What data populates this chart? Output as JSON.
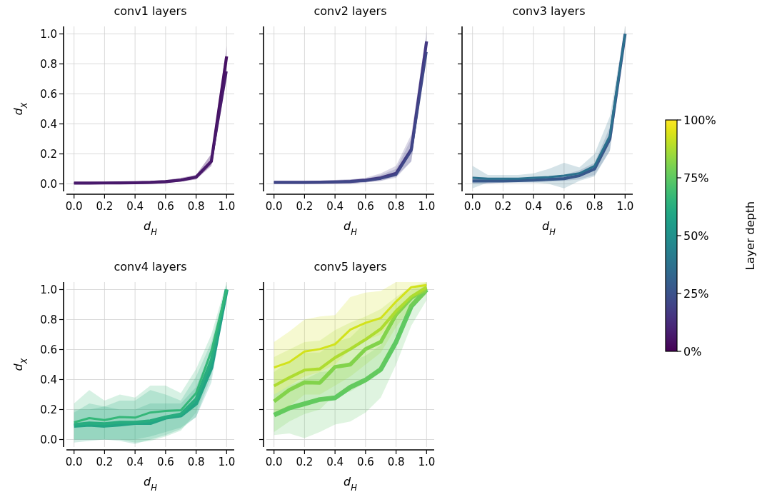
{
  "chart_data": [
    {
      "type": "line",
      "title": "conv1 layers",
      "xlabel": "d$_{H}$",
      "ylabel": "d$_{X}$",
      "xlim": [
        -0.05,
        1.05
      ],
      "ylim": [
        -0.05,
        1.05
      ],
      "x": [
        0,
        0.1,
        0.2,
        0.3,
        0.4,
        0.5,
        0.6,
        0.7,
        0.8,
        0.9,
        1.0
      ],
      "xticks": [
        {
          "value": 0,
          "label": "0.0"
        },
        {
          "value": 0.2,
          "label": "0.2"
        },
        {
          "value": 0.4,
          "label": "0.4"
        },
        {
          "value": 0.6,
          "label": "0.6"
        },
        {
          "value": 0.8,
          "label": "0.8"
        },
        {
          "value": 1,
          "label": "1.0"
        }
      ],
      "yticks": [
        {
          "value": 0,
          "label": "0.0"
        },
        {
          "value": 0.2,
          "label": "0.2"
        },
        {
          "value": 0.4,
          "label": "0.4"
        },
        {
          "value": 0.6,
          "label": "0.6"
        },
        {
          "value": 0.8,
          "label": "0.8"
        },
        {
          "value": 1,
          "label": "1.0"
        }
      ],
      "grid": true,
      "clabel": "Layer depth",
      "clim": [
        0,
        100
      ],
      "cticks": [
        {
          "value": 0,
          "label": "0%"
        },
        {
          "value": 25,
          "label": "25%"
        },
        {
          "value": 50,
          "label": "50%"
        },
        {
          "value": 75,
          "label": "75%"
        },
        {
          "value": 100,
          "label": "100%"
        }
      ],
      "series": [
        {
          "color": "#471164",
          "values": [
            0.005,
            0.005,
            0.006,
            0.007,
            0.008,
            0.01,
            0.015,
            0.025,
            0.045,
            0.15,
            0.85
          ],
          "lower": [
            0,
            0,
            0,
            0,
            0,
            0,
            0.005,
            0.015,
            0.03,
            0.12,
            0.8
          ],
          "upper": [
            0.01,
            0.01,
            0.012,
            0.014,
            0.016,
            0.02,
            0.025,
            0.04,
            0.06,
            0.2,
            0.92
          ]
        },
        {
          "color": "#481a6c",
          "values": [
            0.005,
            0.005,
            0.006,
            0.007,
            0.008,
            0.01,
            0.015,
            0.025,
            0.045,
            0.15,
            0.75
          ],
          "lower": [
            0,
            0,
            0,
            0,
            0,
            0,
            0.005,
            0.015,
            0.03,
            0.12,
            0.7
          ],
          "upper": [
            0.01,
            0.01,
            0.012,
            0.014,
            0.016,
            0.02,
            0.025,
            0.04,
            0.06,
            0.2,
            0.8
          ]
        }
      ]
    },
    {
      "type": "line",
      "title": "conv2 layers",
      "xlabel": "d$_{H}$",
      "xlim": [
        -0.05,
        1.05
      ],
      "ylim": [
        -0.05,
        1.05
      ],
      "x": [
        0,
        0.1,
        0.2,
        0.3,
        0.4,
        0.5,
        0.6,
        0.7,
        0.8,
        0.9,
        1.0
      ],
      "tick_labels": "x",
      "xticks": [
        {
          "value": 0,
          "label": "0.0"
        },
        {
          "value": 0.2,
          "label": "0.2"
        },
        {
          "value": 0.4,
          "label": "0.4"
        },
        {
          "value": 0.6,
          "label": "0.6"
        },
        {
          "value": 0.8,
          "label": "0.8"
        },
        {
          "value": 1,
          "label": "1.0"
        }
      ],
      "yticks": [
        {
          "value": 0,
          "label": null
        },
        {
          "value": 0.2,
          "label": null
        },
        {
          "value": 0.4,
          "label": null
        },
        {
          "value": 0.6,
          "label": null
        },
        {
          "value": 0.8,
          "label": null
        },
        {
          "value": 1,
          "label": null
        }
      ],
      "grid": true,
      "series": [
        {
          "color": "#443983",
          "values": [
            0.01,
            0.01,
            0.01,
            0.011,
            0.013,
            0.016,
            0.025,
            0.04,
            0.07,
            0.23,
            0.95
          ],
          "lower": [
            0,
            0,
            0,
            0,
            0,
            0,
            0.01,
            0.02,
            0.05,
            0.15,
            0.9
          ],
          "upper": [
            0.02,
            0.02,
            0.02,
            0.022,
            0.026,
            0.03,
            0.04,
            0.07,
            0.12,
            0.33,
            1.02
          ]
        },
        {
          "color": "#3f4788",
          "values": [
            0.01,
            0.01,
            0.01,
            0.011,
            0.013,
            0.016,
            0.02,
            0.035,
            0.06,
            0.22,
            0.88
          ],
          "lower": [
            0,
            0,
            0,
            0,
            0,
            0,
            0.01,
            0.02,
            0.04,
            0.15,
            0.84
          ],
          "upper": [
            0.02,
            0.02,
            0.02,
            0.022,
            0.026,
            0.03,
            0.035,
            0.06,
            0.1,
            0.3,
            0.93
          ]
        }
      ]
    },
    {
      "type": "line",
      "title": "conv3 layers",
      "xlabel": "d$_{H}$",
      "xlim": [
        -0.05,
        1.05
      ],
      "ylim": [
        -0.05,
        1.05
      ],
      "x": [
        0,
        0.1,
        0.2,
        0.3,
        0.4,
        0.5,
        0.6,
        0.7,
        0.8,
        0.9,
        1.0
      ],
      "tick_labels": "x",
      "xticks": [
        {
          "value": 0,
          "label": "0.0"
        },
        {
          "value": 0.2,
          "label": "0.2"
        },
        {
          "value": 0.4,
          "label": "0.4"
        },
        {
          "value": 0.6,
          "label": "0.6"
        },
        {
          "value": 0.8,
          "label": "0.8"
        },
        {
          "value": 1,
          "label": "1.0"
        }
      ],
      "yticks": [
        {
          "value": 0,
          "label": null
        },
        {
          "value": 0.2,
          "label": null
        },
        {
          "value": 0.4,
          "label": null
        },
        {
          "value": 0.6,
          "label": null
        },
        {
          "value": 0.8,
          "label": null
        },
        {
          "value": 1,
          "label": null
        }
      ],
      "grid": true,
      "series": [
        {
          "color": "#3b528b",
          "values": [
            0.02,
            0.02,
            0.02,
            0.022,
            0.025,
            0.03,
            0.035,
            0.055,
            0.1,
            0.3,
            1.0
          ],
          "lower": [
            0,
            0,
            0.01,
            0.01,
            0.01,
            0.015,
            0.02,
            0.03,
            0.06,
            0.22,
            0.97
          ],
          "upper": [
            0.05,
            0.04,
            0.04,
            0.04,
            0.04,
            0.05,
            0.06,
            0.09,
            0.14,
            0.38,
            1.03
          ]
        },
        {
          "color": "#2c728e",
          "values": [
            0.04,
            0.035,
            0.035,
            0.035,
            0.04,
            0.045,
            0.055,
            0.07,
            0.12,
            0.32,
            1.0
          ],
          "lower": [
            -0.03,
            0.01,
            0.01,
            0.01,
            0.01,
            0.0,
            -0.03,
            0.02,
            0.05,
            0.22,
            0.97
          ],
          "upper": [
            0.12,
            0.06,
            0.06,
            0.06,
            0.07,
            0.1,
            0.14,
            0.11,
            0.2,
            0.45,
            1.05
          ]
        }
      ]
    },
    {
      "type": "line",
      "title": "conv4 layers",
      "xlabel": "d$_{H}$",
      "ylabel": "d$_{X}$",
      "xlim": [
        -0.05,
        1.05
      ],
      "ylim": [
        -0.05,
        1.05
      ],
      "x": [
        0,
        0.1,
        0.2,
        0.3,
        0.4,
        0.5,
        0.6,
        0.7,
        0.8,
        0.9,
        1.0
      ],
      "xticks": [
        {
          "value": 0,
          "label": "0.0"
        },
        {
          "value": 0.2,
          "label": "0.2"
        },
        {
          "value": 0.4,
          "label": "0.4"
        },
        {
          "value": 0.6,
          "label": "0.6"
        },
        {
          "value": 0.8,
          "label": "0.8"
        },
        {
          "value": 1,
          "label": "1.0"
        }
      ],
      "yticks": [
        {
          "value": 0,
          "label": "0.0"
        },
        {
          "value": 0.2,
          "label": "0.2"
        },
        {
          "value": 0.4,
          "label": "0.4"
        },
        {
          "value": 0.6,
          "label": "0.6"
        },
        {
          "value": 0.8,
          "label": "0.8"
        },
        {
          "value": 1,
          "label": "1.0"
        }
      ],
      "grid": true,
      "series": [
        {
          "color": "#1f9e89",
          "values": [
            0.092,
            0.098,
            0.092,
            0.1,
            0.11,
            0.11,
            0.146,
            0.16,
            0.24,
            0.48,
            1.0
          ],
          "lower": [
            0.0,
            0.0,
            0.0,
            0.0,
            0.0,
            0.02,
            0.05,
            0.08,
            0.15,
            0.38,
            0.97
          ],
          "upper": [
            0.2,
            0.2,
            0.22,
            0.2,
            0.2,
            0.24,
            0.24,
            0.24,
            0.35,
            0.6,
            1.03
          ]
        },
        {
          "color": "#25ab82",
          "values": [
            0.1,
            0.11,
            0.105,
            0.115,
            0.115,
            0.125,
            0.15,
            0.17,
            0.27,
            0.53,
            1.0
          ],
          "lower": [
            -0.02,
            -0.01,
            0.0,
            -0.01,
            -0.03,
            0.0,
            0.03,
            0.07,
            0.15,
            0.42,
            0.97
          ],
          "upper": [
            0.18,
            0.24,
            0.22,
            0.26,
            0.26,
            0.33,
            0.3,
            0.26,
            0.42,
            0.65,
            1.03
          ]
        },
        {
          "color": "#35b779",
          "values": [
            0.114,
            0.143,
            0.13,
            0.15,
            0.146,
            0.18,
            0.19,
            0.195,
            0.31,
            0.59,
            1.0
          ],
          "lower": [
            0.0,
            0.0,
            0.0,
            0.0,
            -0.02,
            -0.01,
            0.02,
            0.06,
            0.18,
            0.46,
            0.96
          ],
          "upper": [
            0.24,
            0.33,
            0.26,
            0.3,
            0.28,
            0.36,
            0.36,
            0.31,
            0.47,
            0.7,
            1.05
          ]
        }
      ]
    },
    {
      "type": "line",
      "title": "conv5 layers",
      "xlabel": "d$_{H}$",
      "xlim": [
        -0.05,
        1.05
      ],
      "ylim": [
        -0.05,
        1.05
      ],
      "x": [
        0,
        0.1,
        0.2,
        0.3,
        0.4,
        0.5,
        0.6,
        0.7,
        0.8,
        0.9,
        1.0
      ],
      "tick_labels": "x",
      "xticks": [
        {
          "value": 0,
          "label": "0.0"
        },
        {
          "value": 0.2,
          "label": "0.2"
        },
        {
          "value": 0.4,
          "label": "0.4"
        },
        {
          "value": 0.6,
          "label": "0.6"
        },
        {
          "value": 0.8,
          "label": "0.8"
        },
        {
          "value": 1,
          "label": "1.0"
        }
      ],
      "yticks": [
        {
          "value": 0,
          "label": null
        },
        {
          "value": 0.2,
          "label": null
        },
        {
          "value": 0.4,
          "label": null
        },
        {
          "value": 0.6,
          "label": null
        },
        {
          "value": 0.8,
          "label": null
        },
        {
          "value": 1,
          "label": null
        }
      ],
      "grid": true,
      "series": [
        {
          "color": "#5ec962",
          "values": [
            0.163,
            0.21,
            0.238,
            0.267,
            0.278,
            0.349,
            0.397,
            0.468,
            0.651,
            0.889,
            1.0
          ],
          "lower": [
            0.03,
            0.04,
            0.01,
            0.05,
            0.1,
            0.12,
            0.18,
            0.28,
            0.5,
            0.76,
            0.93
          ],
          "upper": [
            0.3,
            0.36,
            0.4,
            0.45,
            0.46,
            0.52,
            0.56,
            0.63,
            0.8,
            0.95,
            1.04
          ]
        },
        {
          "color": "#7ad151",
          "values": [
            0.254,
            0.33,
            0.381,
            0.378,
            0.484,
            0.5,
            0.603,
            0.651,
            0.833,
            0.944,
            1.008
          ],
          "lower": [
            0.05,
            0.12,
            0.17,
            0.2,
            0.3,
            0.32,
            0.38,
            0.45,
            0.7,
            0.88,
            0.97
          ],
          "upper": [
            0.45,
            0.52,
            0.58,
            0.58,
            0.65,
            0.68,
            0.78,
            0.82,
            0.92,
            1.0,
            1.04
          ]
        },
        {
          "color": "#a5db36",
          "values": [
            0.357,
            0.413,
            0.463,
            0.471,
            0.546,
            0.603,
            0.667,
            0.738,
            0.857,
            0.952,
            1.016
          ],
          "lower": [
            0.18,
            0.22,
            0.3,
            0.3,
            0.36,
            0.42,
            0.5,
            0.58,
            0.75,
            0.88,
            0.97
          ],
          "upper": [
            0.55,
            0.6,
            0.65,
            0.66,
            0.73,
            0.78,
            0.82,
            0.87,
            0.95,
            1.02,
            1.05
          ]
        },
        {
          "color": "#d2e21b",
          "values": [
            0.48,
            0.516,
            0.587,
            0.603,
            0.635,
            0.733,
            0.778,
            0.81,
            0.92,
            1.016,
            1.03
          ],
          "lower": [
            0.3,
            0.36,
            0.42,
            0.45,
            0.5,
            0.6,
            0.66,
            0.7,
            0.82,
            0.95,
            0.98
          ],
          "upper": [
            0.65,
            0.72,
            0.8,
            0.82,
            0.83,
            0.95,
            0.98,
            0.99,
            1.05,
            1.05,
            1.05
          ]
        }
      ]
    }
  ]
}
